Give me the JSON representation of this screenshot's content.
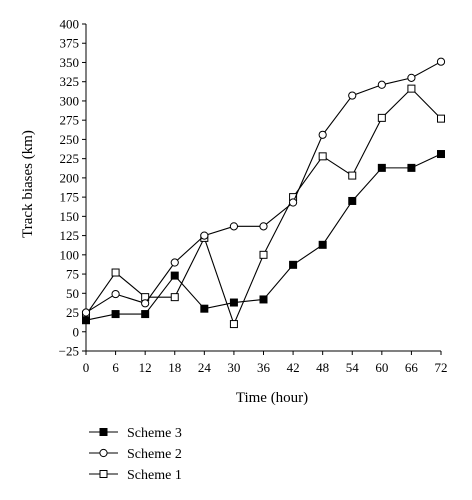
{
  "chart_data": {
    "type": "line",
    "xlabel": "Time (hour)",
    "ylabel": "Track biases (km)",
    "x": [
      0,
      6,
      12,
      18,
      24,
      30,
      36,
      42,
      48,
      54,
      60,
      66,
      72
    ],
    "xlim": [
      0,
      72
    ],
    "ylim": [
      -25,
      400
    ],
    "xticks": [
      "0",
      "6",
      "12",
      "18",
      "24",
      "30",
      "36",
      "42",
      "48",
      "54",
      "60",
      "66",
      "72"
    ],
    "yticks": [
      "-25",
      "0",
      "25",
      "50",
      "75",
      "100",
      "125",
      "150",
      "175",
      "200",
      "225",
      "250",
      "275",
      "300",
      "325",
      "350",
      "375",
      "400"
    ],
    "grid": false,
    "legend_position": "below",
    "series": [
      {
        "name": "Scheme 3",
        "marker": "filled-square",
        "values": [
          15,
          23,
          23,
          73,
          30,
          38,
          42,
          87,
          113,
          170,
          213,
          213,
          231
        ]
      },
      {
        "name": "Scheme 2",
        "marker": "open-circle",
        "values": [
          25,
          49,
          37,
          90,
          125,
          137,
          137,
          168,
          256,
          307,
          321,
          330,
          351
        ]
      },
      {
        "name": "Scheme 1",
        "marker": "open-square",
        "values": [
          22,
          77,
          45,
          45,
          122,
          10,
          100,
          175,
          228,
          203,
          278,
          316,
          277
        ]
      }
    ],
    "colors": {
      "line": "#000000",
      "background": "#ffffff"
    }
  }
}
